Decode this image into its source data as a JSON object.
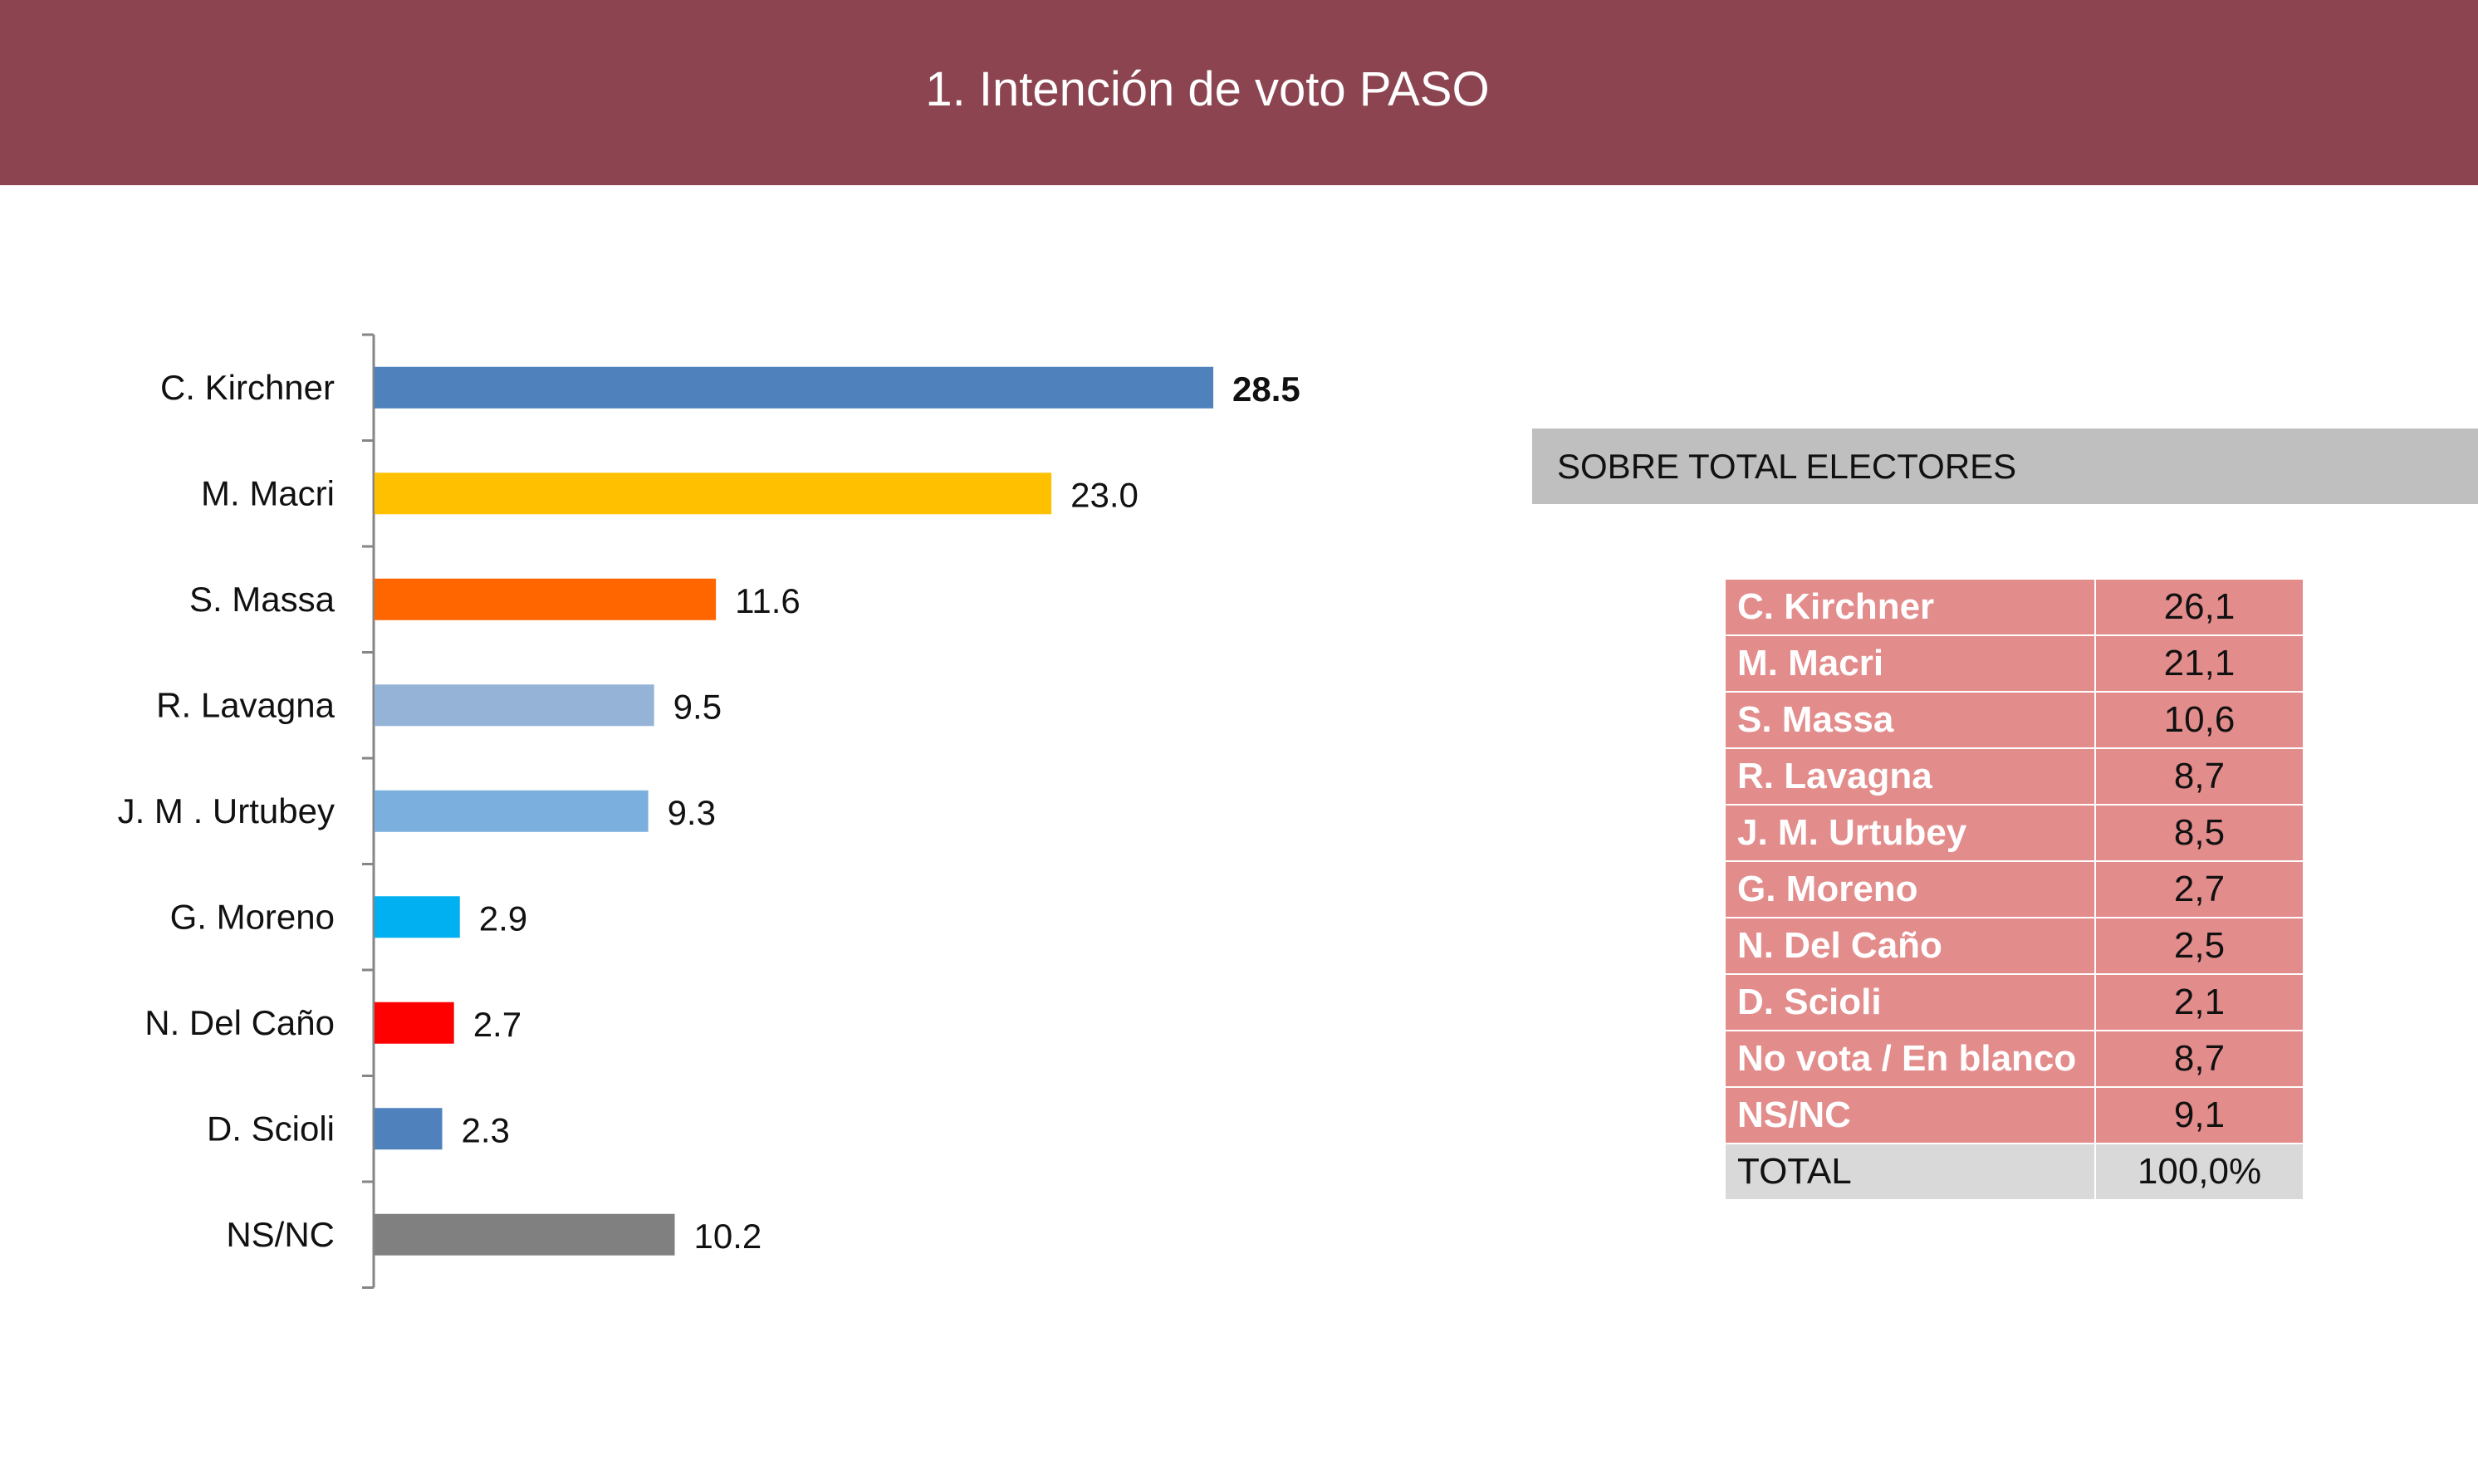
{
  "header": {
    "title": "1. Intención de voto PASO"
  },
  "chart_data": {
    "type": "bar",
    "orientation": "horizontal",
    "categories": [
      "C. Kirchner",
      "M. Macri",
      "S. Massa",
      "R. Lavagna",
      "J. M . Urtubey",
      "G. Moreno",
      "N. Del Caño",
      "D. Scioli",
      "NS/NC"
    ],
    "values": [
      28.5,
      23.0,
      11.6,
      9.5,
      9.3,
      2.9,
      2.7,
      2.3,
      10.2
    ],
    "value_labels": [
      "28.5",
      "23.0",
      "11.6",
      "9.5",
      "9.3",
      "2.9",
      "2.7",
      "2.3",
      "10.2"
    ],
    "colors": [
      "#4f81bd",
      "#ffc000",
      "#ff6600",
      "#95b3d7",
      "#7aafde",
      "#00b0f0",
      "#ff0000",
      "#4f81bd",
      "#808080"
    ],
    "title": "",
    "xlabel": "",
    "ylabel": "",
    "xlim": [
      0,
      30
    ],
    "grid": false
  },
  "side_panel": {
    "heading": "SOBRE TOTAL ELECTORES",
    "rows": [
      {
        "name": "C. Kirchner",
        "value": "26,1"
      },
      {
        "name": "M. Macri",
        "value": "21,1"
      },
      {
        "name": "S. Massa",
        "value": "10,6"
      },
      {
        "name": "R. Lavagna",
        "value": "8,7"
      },
      {
        "name": "J. M. Urtubey",
        "value": "8,5"
      },
      {
        "name": "G. Moreno",
        "value": "2,7"
      },
      {
        "name": "N. Del Caño",
        "value": "2,5"
      },
      {
        "name": "D. Scioli",
        "value": "2,1"
      },
      {
        "name": "No vota / En blanco",
        "value": "8,7"
      },
      {
        "name": "NS/NC",
        "value": "9,1"
      }
    ],
    "total": {
      "name": "TOTAL",
      "value": "100,0%"
    },
    "colors": {
      "row": "#e38c8c",
      "total": "#d9d9d9",
      "band": "#bfbfbf"
    }
  }
}
